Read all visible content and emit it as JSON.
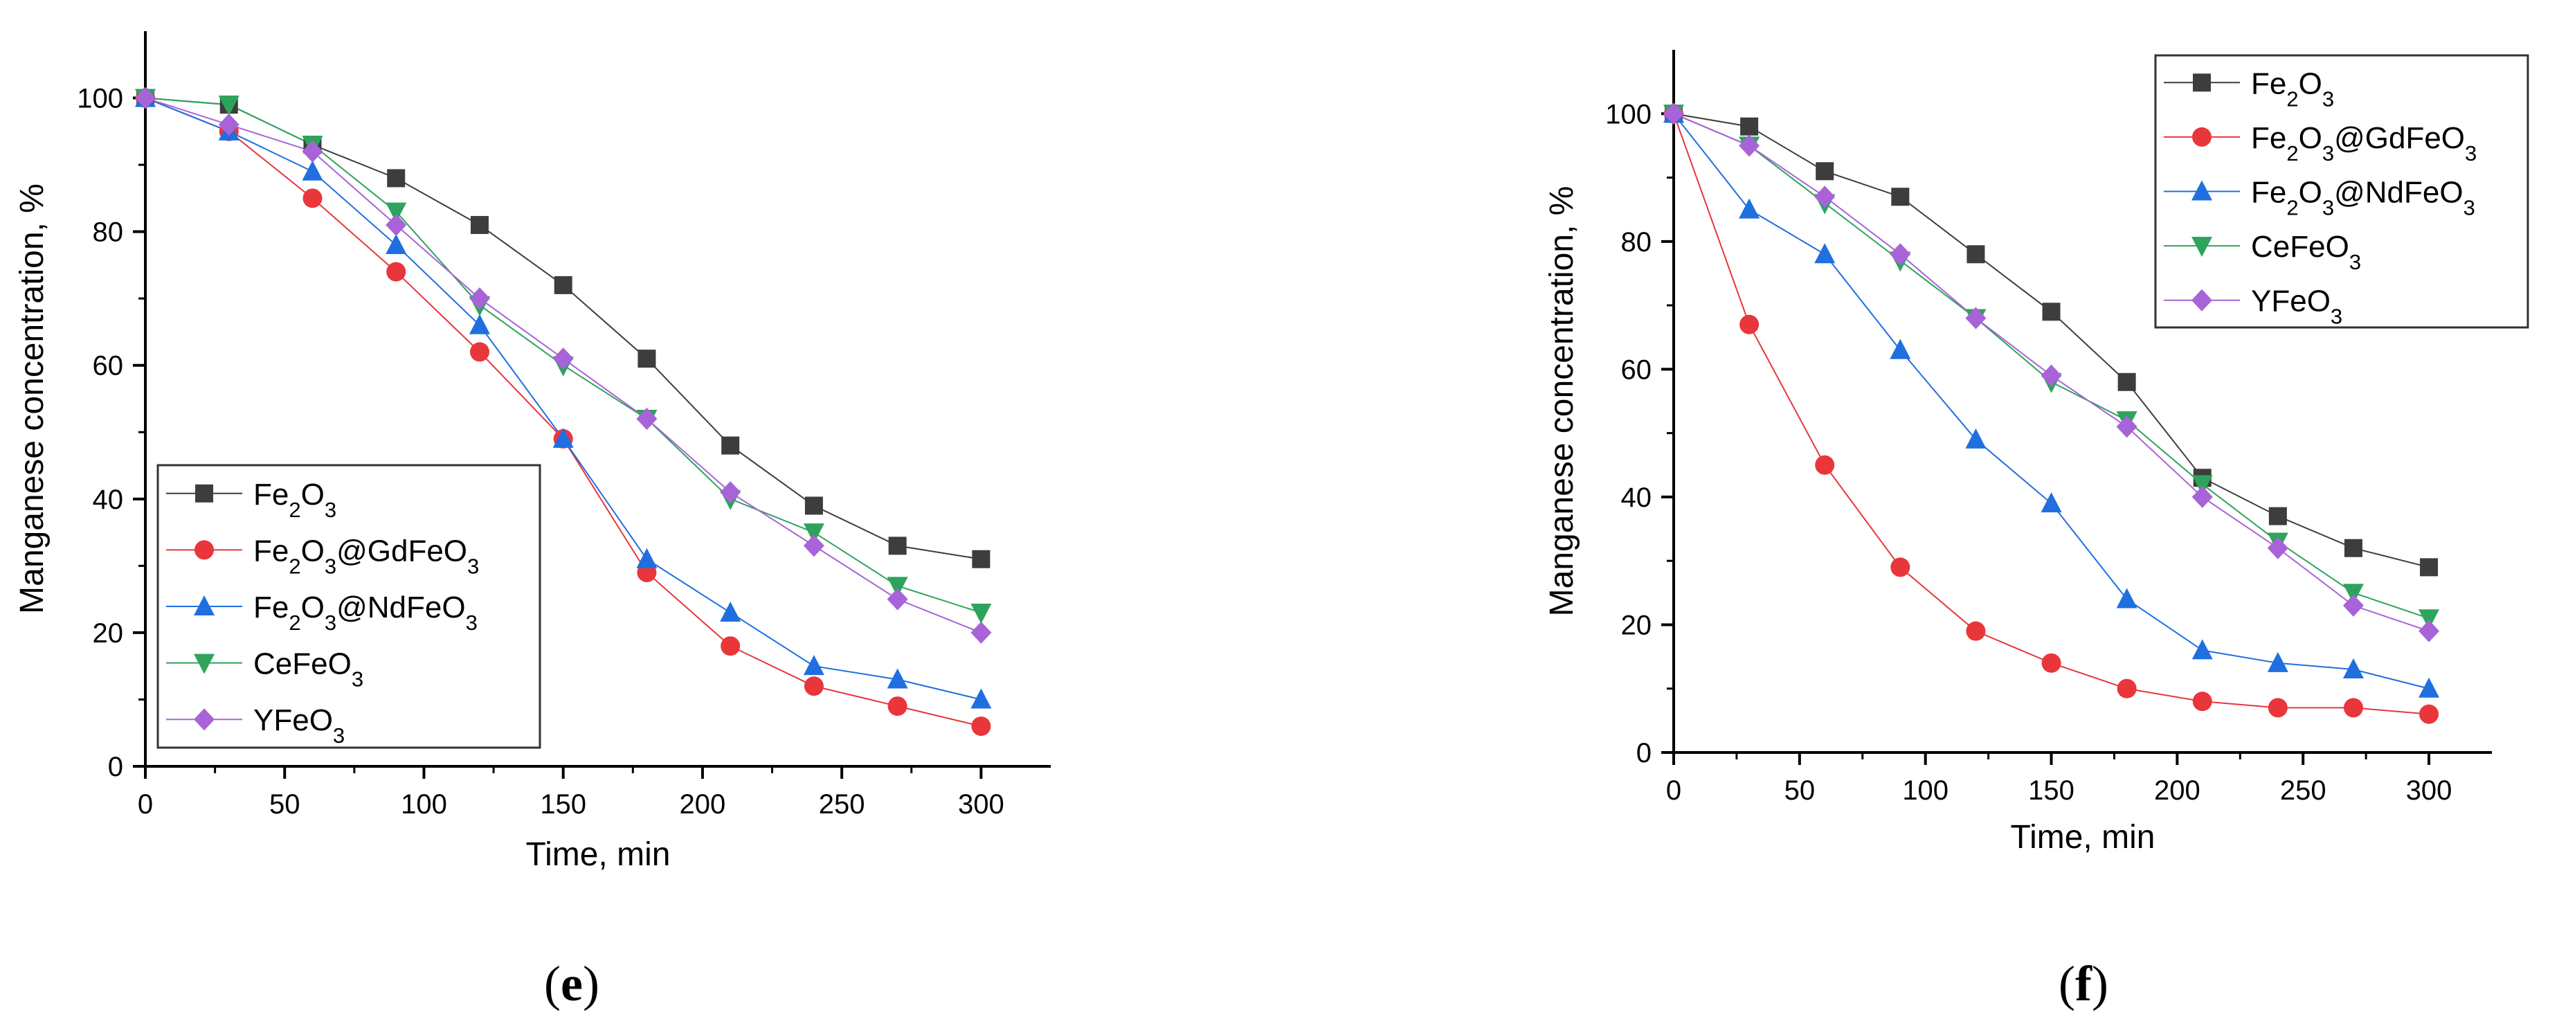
{
  "chart_data": [
    {
      "panel": "e",
      "panel_label": "(e)",
      "type": "line",
      "title": "",
      "xlabel": "Time, min",
      "ylabel": "Manganese concentration, %",
      "xlim": [
        0,
        325
      ],
      "ylim": [
        0,
        110
      ],
      "xticks": [
        0,
        50,
        100,
        150,
        200,
        250,
        300
      ],
      "yticks": [
        0,
        20,
        40,
        60,
        80,
        100
      ],
      "legend_position": "bottom-left",
      "x": [
        0,
        30,
        60,
        90,
        120,
        150,
        180,
        210,
        240,
        270,
        300
      ],
      "series": [
        {
          "name": "Fe2O3",
          "color": "#3d3d3d",
          "marker": "square",
          "values": [
            100,
            99,
            93,
            88,
            81,
            72,
            61,
            48,
            39,
            33,
            31
          ]
        },
        {
          "name": "Fe2O3@GdFeO3",
          "color": "#e8363b",
          "marker": "circle",
          "values": [
            100,
            95,
            85,
            74,
            62,
            49,
            29,
            18,
            12,
            9,
            6
          ]
        },
        {
          "name": "Fe2O3@NdFeO3",
          "color": "#1f6fe0",
          "marker": "triangle-up",
          "values": [
            100,
            95,
            89,
            78,
            66,
            49,
            31,
            23,
            15,
            13,
            10
          ]
        },
        {
          "name": "CeFeO3",
          "color": "#2ea35c",
          "marker": "triangle-down",
          "values": [
            100,
            99,
            93,
            83,
            69,
            60,
            52,
            40,
            35,
            27,
            23
          ]
        },
        {
          "name": "YFeO3",
          "color": "#a863d8",
          "marker": "diamond",
          "values": [
            100,
            96,
            92,
            81,
            70,
            61,
            52,
            41,
            33,
            25,
            20
          ]
        }
      ]
    },
    {
      "panel": "f",
      "panel_label": "(f)",
      "type": "line",
      "title": "",
      "xlabel": "Time, min",
      "ylabel": "Manganese concentration, %",
      "xlim": [
        0,
        325
      ],
      "ylim": [
        0,
        110
      ],
      "xticks": [
        0,
        50,
        100,
        150,
        200,
        250,
        300
      ],
      "yticks": [
        0,
        20,
        40,
        60,
        80,
        100
      ],
      "legend_position": "top-right",
      "x": [
        0,
        30,
        60,
        90,
        120,
        150,
        180,
        210,
        240,
        270,
        300
      ],
      "series": [
        {
          "name": "Fe2O3",
          "color": "#3d3d3d",
          "marker": "square",
          "values": [
            100,
            98,
            91,
            87,
            78,
            69,
            58,
            43,
            37,
            32,
            29
          ]
        },
        {
          "name": "Fe2O3@GdFeO3",
          "color": "#e8363b",
          "marker": "circle",
          "values": [
            100,
            67,
            45,
            29,
            19,
            14,
            10,
            8,
            7,
            7,
            6
          ]
        },
        {
          "name": "Fe2O3@NdFeO3",
          "color": "#1f6fe0",
          "marker": "triangle-up",
          "values": [
            100,
            85,
            78,
            63,
            49,
            39,
            24,
            16,
            14,
            13,
            10
          ]
        },
        {
          "name": "CeFeO3",
          "color": "#2ea35c",
          "marker": "triangle-down",
          "values": [
            100,
            95,
            86,
            77,
            68,
            58,
            52,
            42,
            33,
            25,
            21
          ]
        },
        {
          "name": "YFeO3",
          "color": "#a863d8",
          "marker": "diamond",
          "values": [
            100,
            95,
            87,
            78,
            68,
            59,
            51,
            40,
            32,
            23,
            19
          ]
        }
      ]
    }
  ]
}
